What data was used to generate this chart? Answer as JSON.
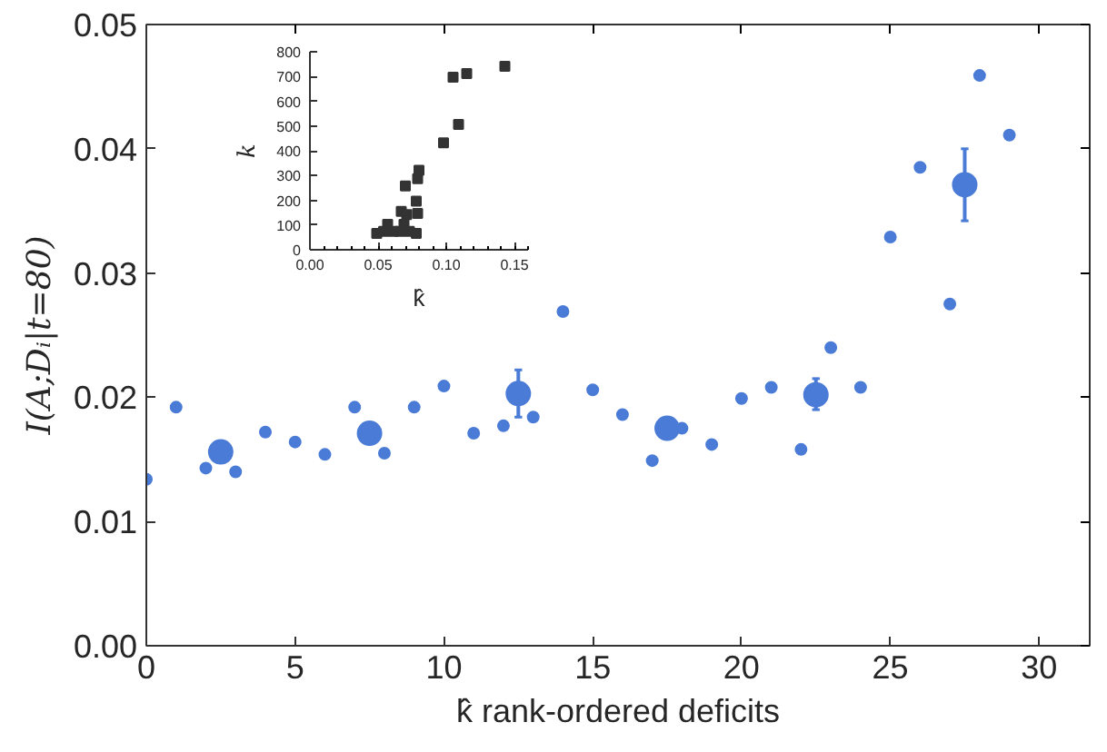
{
  "chart_data": [
    {
      "type": "scatter",
      "xlabel": "k̂ rank-ordered deficits",
      "ylabel": "I(A;Dᵢ|t=80)",
      "xlim": [
        0,
        31.7
      ],
      "ylim": [
        0,
        0.05
      ],
      "xticks": [
        0,
        5,
        10,
        15,
        20,
        25,
        30
      ],
      "yticks": [
        {
          "value": 0,
          "label": "0.00"
        },
        {
          "value": 0.01,
          "label": "0.01"
        },
        {
          "value": 0.02,
          "label": "0.02"
        },
        {
          "value": 0.03,
          "label": "0.03"
        },
        {
          "value": 0.04,
          "label": "0.04"
        },
        {
          "value": 0.05,
          "label": "0.05"
        }
      ],
      "grid": false,
      "marker": "circle",
      "series": [
        {
          "color": "#4a7bd6",
          "x": [
            0,
            1,
            2,
            3,
            4,
            5,
            6,
            7,
            8,
            9,
            10,
            11,
            12,
            13,
            14,
            15,
            16,
            17,
            18,
            19,
            20,
            21,
            22,
            23,
            24,
            25,
            26,
            27,
            28,
            29
          ],
          "values": [
            0.0134,
            0.0192,
            0.0143,
            0.014,
            0.0172,
            0.0164,
            0.0154,
            0.0192,
            0.0155,
            0.0192,
            0.0209,
            0.0171,
            0.0177,
            0.0184,
            0.0269,
            0.0206,
            0.0186,
            0.0149,
            0.0175,
            0.0162,
            0.0199,
            0.0208,
            0.0158,
            0.024,
            0.0208,
            0.0329,
            0.0385,
            0.0275,
            0.0459,
            0.0411
          ]
        },
        {
          "color": "#4a7bd6",
          "x": [
            2.5,
            7.5,
            12.5,
            17.5,
            22.5,
            27.5
          ],
          "values": [
            0.0156,
            0.0171,
            0.0203,
            0.0175,
            0.0202,
            0.0371
          ],
          "errors": [
            null,
            null,
            [
              0.0184,
              0.0222
            ],
            null,
            [
              0.019,
              0.0215
            ],
            [
              0.0342,
              0.04
            ]
          ]
        }
      ]
    },
    {
      "type": "scatter",
      "xlabel": "k̂",
      "ylabel": "k",
      "xlim": [
        0,
        0.16
      ],
      "ylim": [
        0,
        800
      ],
      "xticks": [
        {
          "value": 0,
          "label": "0.00"
        },
        {
          "value": 0.05,
          "label": "0.05"
        },
        {
          "value": 0.1,
          "label": "0.10"
        },
        {
          "value": 0.15,
          "label": "0.15"
        }
      ],
      "yticks": [
        0,
        100,
        200,
        300,
        400,
        500,
        600,
        700,
        800
      ],
      "grid": false,
      "marker": "square",
      "series": [
        {
          "color": "#333333",
          "x": [
            0.143,
            0.115,
            0.105,
            0.109,
            0.098,
            0.08,
            0.079,
            0.07,
            0.078,
            0.079,
            0.067,
            0.071,
            0.057,
            0.069,
            0.049,
            0.054,
            0.061,
            0.066,
            0.073,
            0.078
          ],
          "values": [
            741,
            712,
            697,
            506,
            432,
            321,
            287,
            258,
            196,
            147,
            155,
            142,
            103,
            103,
            66,
            74,
            74,
            74,
            74,
            66
          ]
        }
      ]
    }
  ]
}
